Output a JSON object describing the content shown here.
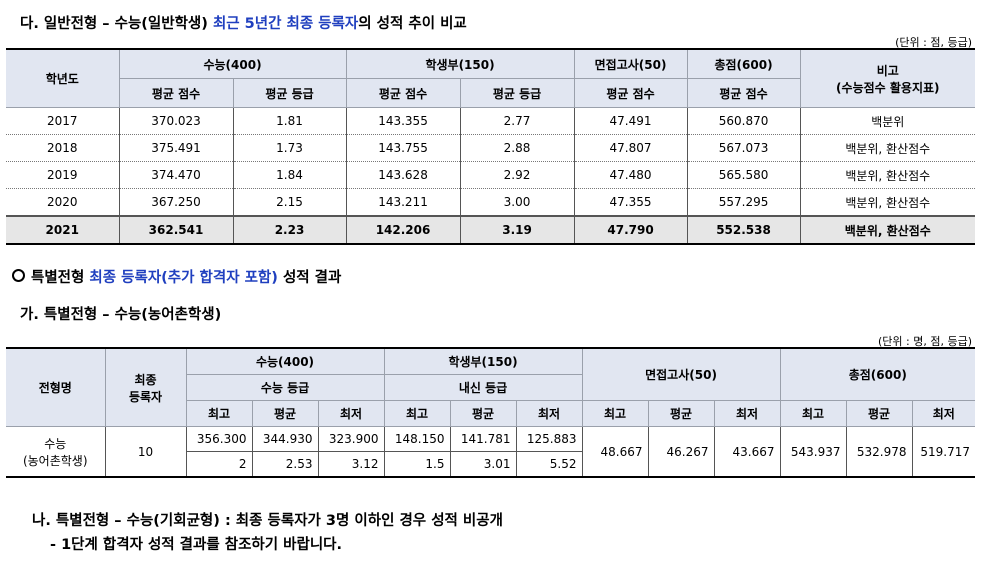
{
  "section_d": {
    "title_pre": "다. 일반전형 – 수능(일반학생) ",
    "title_blue": "최근 5년간 최종 등록자",
    "title_post": "의 성적 추이 비교",
    "unit": "(단위 : 점, 등급)",
    "headers": {
      "year": "학년도",
      "suneung": "수능(400)",
      "hakseng": "학생부(150)",
      "interview": "면접고사(50)",
      "total": "총점(600)",
      "note": "비고",
      "note_sub": "(수능점수 활용지표)",
      "avg_score": "평균 점수",
      "avg_grade": "평균 등급"
    },
    "rows": [
      [
        "2017",
        "370.023",
        "1.81",
        "143.355",
        "2.77",
        "47.491",
        "560.870",
        "백분위"
      ],
      [
        "2018",
        "375.491",
        "1.73",
        "143.755",
        "2.88",
        "47.807",
        "567.073",
        "백분위, 환산점수"
      ],
      [
        "2019",
        "374.470",
        "1.84",
        "143.628",
        "2.92",
        "47.480",
        "565.580",
        "백분위, 환산점수"
      ],
      [
        "2020",
        "367.250",
        "2.15",
        "143.211",
        "3.00",
        "47.355",
        "557.295",
        "백분위, 환산점수"
      ],
      [
        "2021",
        "362.541",
        "2.23",
        "142.206",
        "3.19",
        "47.790",
        "552.538",
        "백분위, 환산점수"
      ]
    ]
  },
  "special": {
    "heading_pre": "특별전형 ",
    "heading_blue": "최종 등록자(추가 합격자 포함)",
    "heading_post": " 성적 결과",
    "sub_ga": "가. 특별전형 – 수능(농어촌학생)",
    "unit": "(단위 : 명, 점, 등급)",
    "headers": {
      "type": "전형명",
      "final": "최종",
      "registrants": "등록자",
      "suneung": "수능(400)",
      "suneung_sub": "수능 등급",
      "hakseng": "학생부(150)",
      "hakseng_sub": "내신 등급",
      "interview": "면접고사(50)",
      "total": "총점(600)",
      "max": "최고",
      "avg": "평균",
      "min": "최저"
    },
    "row": {
      "name": "수능",
      "name_sub": "(농어촌학생)",
      "count": "10",
      "suneung_score": [
        "356.300",
        "344.930",
        "323.900"
      ],
      "suneung_grade": [
        "2",
        "2.53",
        "3.12"
      ],
      "hakseng_score": [
        "148.150",
        "141.781",
        "125.883"
      ],
      "hakseng_grade": [
        "1.5",
        "3.01",
        "5.52"
      ],
      "interview": [
        "48.667",
        "46.267",
        "43.667"
      ],
      "total": [
        "543.937",
        "532.978",
        "519.717"
      ]
    },
    "note_na": "나. 특별전형 – 수능(기회균형) : 최종 등록자가 3명 이하인 경우 성적 비공개",
    "note_sub": "- 1단계 합격자 성적 결과를 참조하기 바랍니다."
  }
}
